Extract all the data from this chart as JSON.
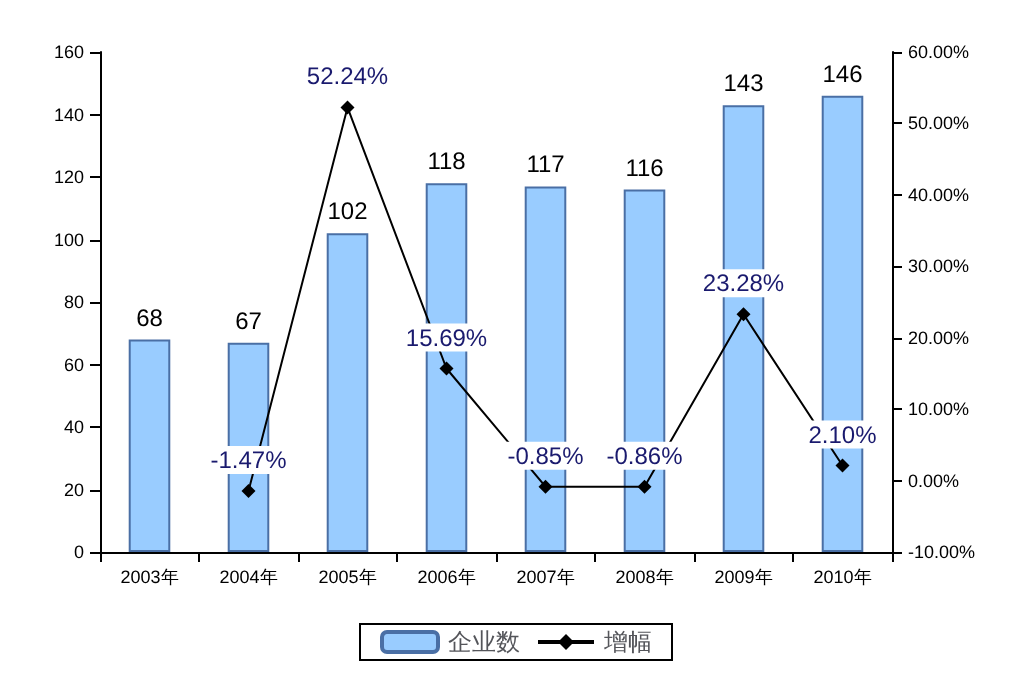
{
  "chart_data": {
    "type": "bar",
    "categories": [
      "2003年",
      "2004年",
      "2005年",
      "2006年",
      "2007年",
      "2008年",
      "2009年",
      "2010年"
    ],
    "series": [
      {
        "name": "企业数",
        "color": "#99ccff",
        "values": [
          68,
          67,
          102,
          118,
          117,
          116,
          143,
          146
        ],
        "value_labels": [
          "68",
          "67",
          "102",
          "118",
          "117",
          "116",
          "143",
          "146"
        ]
      },
      {
        "name": "增幅",
        "type": "line",
        "axis": "y2",
        "color": "#000000",
        "values": [
          null,
          -1.47,
          52.24,
          15.69,
          -0.85,
          -0.86,
          23.28,
          2.1
        ],
        "value_labels": [
          null,
          "-1.47%",
          "52.24%",
          "15.69%",
          "-0.85%",
          "-0.86%",
          "23.28%",
          "2.10%"
        ]
      }
    ],
    "ylim": [
      0,
      160
    ],
    "yticks": [
      0,
      20,
      40,
      60,
      80,
      100,
      120,
      140,
      160
    ],
    "y2lim": [
      -10,
      60
    ],
    "y2ticks": [
      {
        "value": -10,
        "label": "-10.00%"
      },
      {
        "value": 0,
        "label": "0.00%"
      },
      {
        "value": 10,
        "label": "10.00%"
      },
      {
        "value": 20,
        "label": "20.00%"
      },
      {
        "value": 30,
        "label": "30.00%"
      },
      {
        "value": 40,
        "label": "40.00%"
      },
      {
        "value": 50,
        "label": "50.00%"
      },
      {
        "value": 60,
        "label": "60.00%"
      }
    ],
    "grid": false,
    "legend": "bottom",
    "marker": "diamond",
    "line_style": "solid"
  }
}
